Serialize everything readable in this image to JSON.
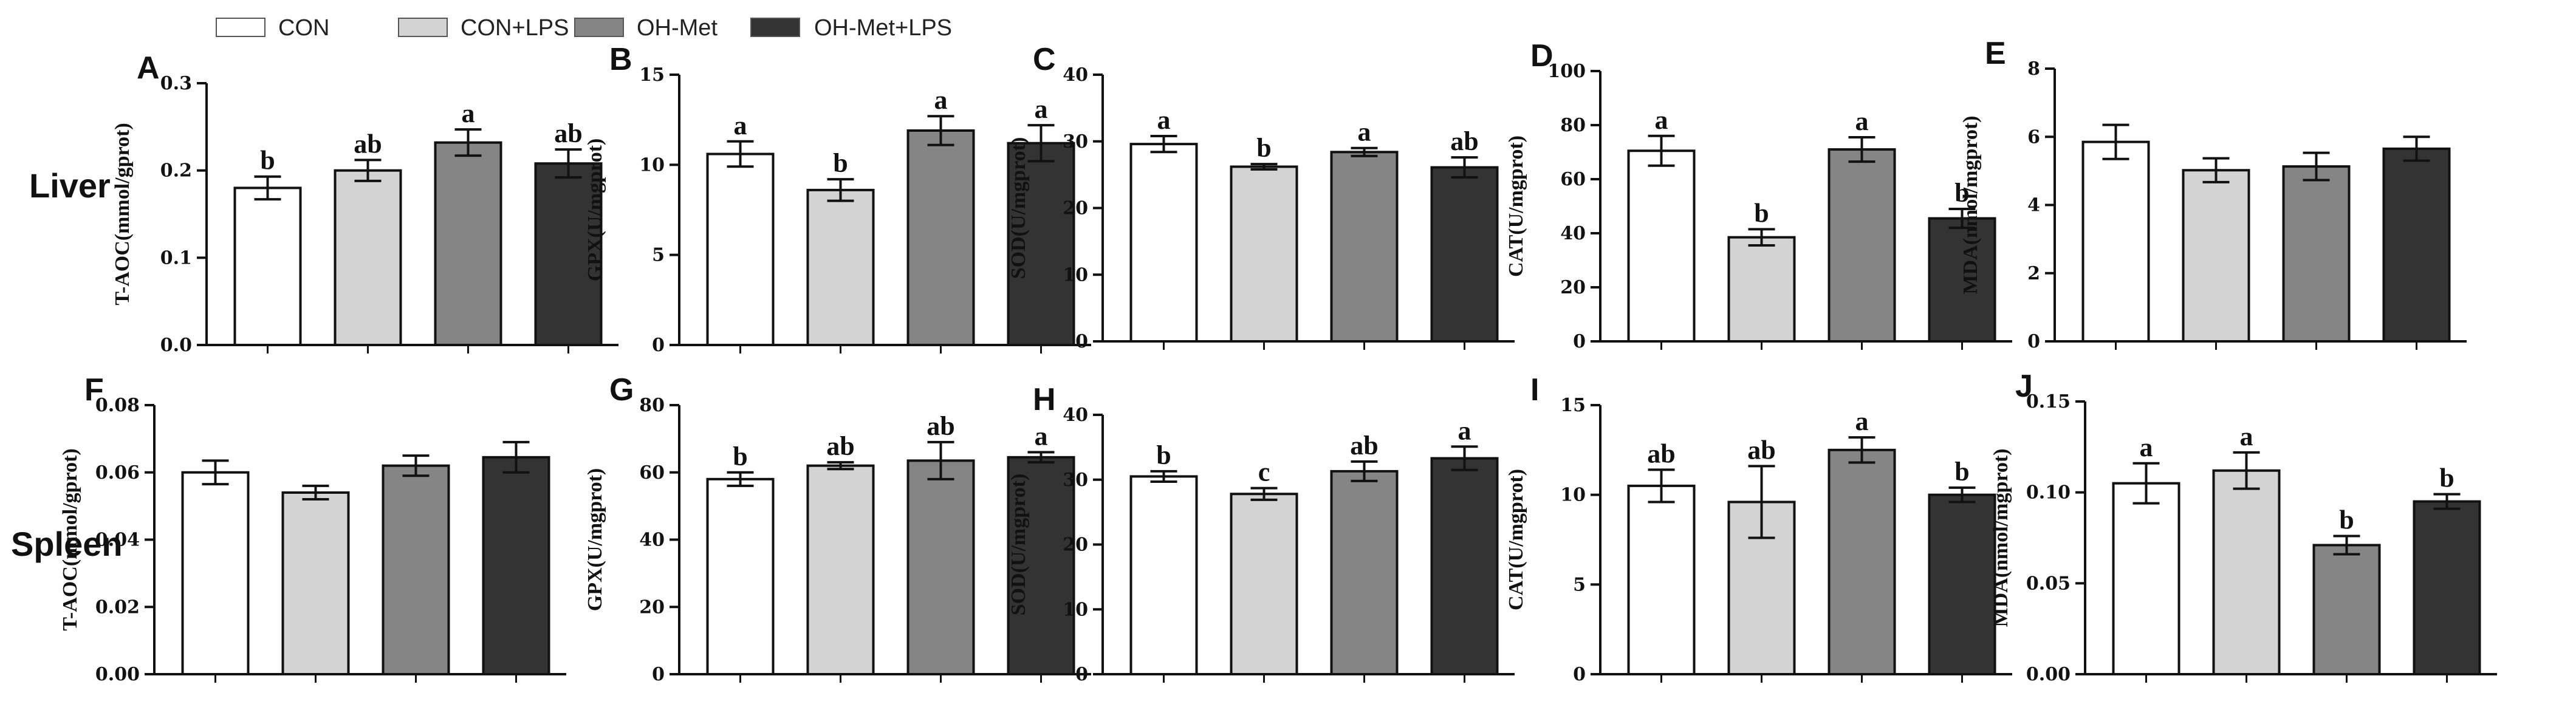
{
  "legend": {
    "items": [
      {
        "label": "CON",
        "color": "#ffffff"
      },
      {
        "label": "CON+LPS",
        "color": "#d3d3d3"
      },
      {
        "label": "OH-Met",
        "color": "#858585"
      },
      {
        "label": "OH-Met+LPS",
        "color": "#333333"
      }
    ]
  },
  "rows": [
    {
      "label": "Liver"
    },
    {
      "label": "Spleen"
    }
  ],
  "chart_data": [
    {
      "type": "bar",
      "panel": "A",
      "row": "Liver",
      "ylabel": "T-AOC(mmol/gprot)",
      "ylim": [
        0,
        0.3
      ],
      "yticks": [
        0,
        0.1,
        0.2,
        0.3
      ],
      "ytick_labels": [
        "0.0",
        "0.1",
        "0.2",
        "0.3"
      ],
      "categories": [
        "CON",
        "CON+LPS",
        "OH-Met",
        "OH-Met+LPS"
      ],
      "values": [
        0.18,
        0.2,
        0.232,
        0.208
      ],
      "errors": [
        0.013,
        0.012,
        0.015,
        0.016
      ],
      "sig": [
        "b",
        "ab",
        "a",
        "ab"
      ]
    },
    {
      "type": "bar",
      "panel": "B",
      "row": "Liver",
      "ylabel": "GPX(U/mgprot)",
      "ylim": [
        0,
        15
      ],
      "yticks": [
        0,
        5,
        10,
        15
      ],
      "ytick_labels": [
        "0",
        "5",
        "10",
        "15"
      ],
      "categories": [
        "CON",
        "CON+LPS",
        "OH-Met",
        "OH-Met+LPS"
      ],
      "values": [
        10.6,
        8.6,
        11.9,
        11.2
      ],
      "errors": [
        0.7,
        0.6,
        0.8,
        1.0
      ],
      "sig": [
        "a",
        "b",
        "a",
        "a"
      ]
    },
    {
      "type": "bar",
      "panel": "C",
      "row": "Liver",
      "ylabel": "SOD(U/mgprot)",
      "ylim": [
        0,
        40
      ],
      "yticks": [
        0,
        10,
        20,
        30,
        40
      ],
      "ytick_labels": [
        "0",
        "10",
        "20",
        "30",
        "40"
      ],
      "categories": [
        "CON",
        "CON+LPS",
        "OH-Met",
        "OH-Met+LPS"
      ],
      "values": [
        29.6,
        26.2,
        28.4,
        26.1
      ],
      "errors": [
        1.2,
        0.4,
        0.6,
        1.5
      ],
      "sig": [
        "a",
        "b",
        "a",
        "ab"
      ]
    },
    {
      "type": "bar",
      "panel": "D",
      "row": "Liver",
      "ylabel": "CAT(U/mgprot)",
      "ylim": [
        0,
        100
      ],
      "yticks": [
        0,
        20,
        40,
        60,
        80,
        100
      ],
      "ytick_labels": [
        "0",
        "20",
        "40",
        "60",
        "80",
        "100"
      ],
      "categories": [
        "CON",
        "CON+LPS",
        "OH-Met",
        "OH-Met+LPS"
      ],
      "values": [
        70.5,
        38.5,
        71.0,
        45.5
      ],
      "errors": [
        5.5,
        3.0,
        4.5,
        3.5
      ],
      "sig": [
        "a",
        "b",
        "a",
        "b"
      ]
    },
    {
      "type": "bar",
      "panel": "E",
      "row": "Liver",
      "ylabel": "MDA(nmol/mgprot)",
      "ylim": [
        0,
        8
      ],
      "yticks": [
        0,
        2,
        4,
        6,
        8
      ],
      "ytick_labels": [
        "0",
        "2",
        "4",
        "6",
        "8"
      ],
      "categories": [
        "CON",
        "CON+LPS",
        "OH-Met",
        "OH-Met+LPS"
      ],
      "values": [
        5.85,
        5.02,
        5.13,
        5.65
      ],
      "errors": [
        0.5,
        0.35,
        0.4,
        0.35
      ],
      "sig": [
        "",
        "",
        "",
        ""
      ]
    },
    {
      "type": "bar",
      "panel": "F",
      "row": "Spleen",
      "ylabel": "T-AOC(mmol/gprot)",
      "ylim": [
        0,
        0.08
      ],
      "yticks": [
        0,
        0.02,
        0.04,
        0.06,
        0.08
      ],
      "ytick_labels": [
        "0.00",
        "0.02",
        "0.04",
        "0.06",
        "0.08"
      ],
      "categories": [
        "CON",
        "CON+LPS",
        "OH-Met",
        "OH-Met+LPS"
      ],
      "values": [
        0.06,
        0.054,
        0.062,
        0.0645
      ],
      "errors": [
        0.0035,
        0.002,
        0.003,
        0.0045
      ],
      "sig": [
        "",
        "",
        "",
        ""
      ]
    },
    {
      "type": "bar",
      "panel": "G",
      "row": "Spleen",
      "ylabel": "GPX(U/mgprot)",
      "ylim": [
        0,
        80
      ],
      "yticks": [
        0,
        20,
        40,
        60,
        80
      ],
      "ytick_labels": [
        "0",
        "20",
        "40",
        "60",
        "80"
      ],
      "categories": [
        "CON",
        "CON+LPS",
        "OH-Met",
        "OH-Met+LPS"
      ],
      "values": [
        58.0,
        62.0,
        63.5,
        64.5
      ],
      "errors": [
        2.0,
        1.0,
        5.5,
        1.5
      ],
      "sig": [
        "b",
        "ab",
        "ab",
        "a"
      ]
    },
    {
      "type": "bar",
      "panel": "H",
      "row": "Spleen",
      "ylabel": "SOD(U/mgprot)",
      "ylim": [
        0,
        40
      ],
      "yticks": [
        0,
        10,
        20,
        30,
        40
      ],
      "ytick_labels": [
        "0",
        "10",
        "20",
        "30",
        "40"
      ],
      "categories": [
        "CON",
        "CON+LPS",
        "OH-Met",
        "OH-Met+LPS"
      ],
      "values": [
        30.5,
        27.8,
        31.3,
        33.3
      ],
      "errors": [
        0.8,
        0.9,
        1.5,
        1.8
      ],
      "sig": [
        "b",
        "c",
        "ab",
        "a"
      ]
    },
    {
      "type": "bar",
      "panel": "I",
      "row": "Spleen",
      "ylabel": "CAT(U/mgprot)",
      "ylim": [
        0,
        15
      ],
      "yticks": [
        0,
        5,
        10,
        15
      ],
      "ytick_labels": [
        "0",
        "5",
        "10",
        "15"
      ],
      "categories": [
        "CON",
        "CON+LPS",
        "OH-Met",
        "OH-Met+LPS"
      ],
      "values": [
        10.5,
        9.6,
        12.5,
        10.0
      ],
      "errors": [
        0.9,
        2.0,
        0.7,
        0.4
      ],
      "sig": [
        "ab",
        "ab",
        "a",
        "b"
      ]
    },
    {
      "type": "bar",
      "panel": "J",
      "row": "Spleen",
      "ylabel": "MDA(nmol/mgprot)",
      "ylim": [
        0,
        0.15
      ],
      "yticks": [
        0,
        0.05,
        0.1,
        0.15
      ],
      "ytick_labels": [
        "0.00",
        "0.05",
        "0.10",
        "0.15"
      ],
      "categories": [
        "CON",
        "CON+LPS",
        "OH-Met",
        "OH-Met+LPS"
      ],
      "values": [
        0.105,
        0.112,
        0.071,
        0.095
      ],
      "errors": [
        0.011,
        0.01,
        0.005,
        0.004
      ],
      "sig": [
        "a",
        "a",
        "b",
        "b"
      ]
    }
  ]
}
